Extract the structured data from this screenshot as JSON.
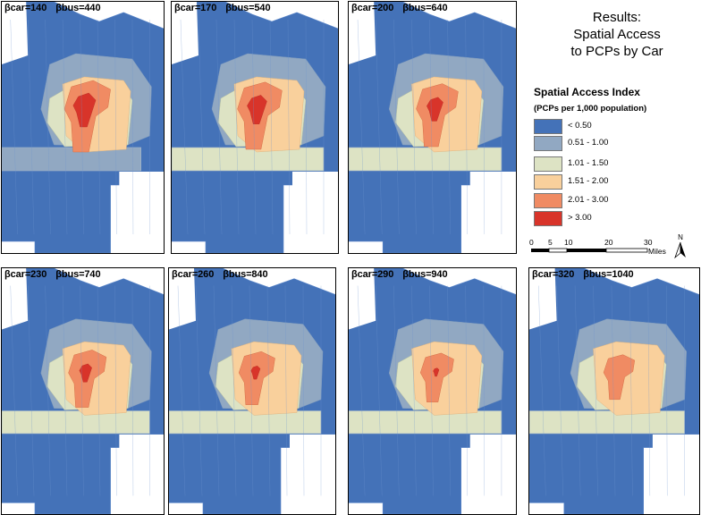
{
  "title": {
    "line1": "Results:",
    "line2": "Spatial Access",
    "line3": "to PCPs by Car"
  },
  "legend": {
    "title": "Spatial Access Index",
    "subtitle": "(PCPs per 1,000 population)",
    "classes": [
      {
        "label": "< 0.50",
        "color": "#4472b8"
      },
      {
        "label": "0.51 - 1.00",
        "color": "#91a8c2"
      },
      {
        "label": "1.01 - 1.50",
        "color": "#dde3c4"
      },
      {
        "label": "1.51 - 2.00",
        "color": "#f9d09c"
      },
      {
        "label": "2.01 - 3.00",
        "color": "#f08b63"
      },
      {
        "label": "> 3.00",
        "color": "#d8342a"
      }
    ]
  },
  "scalebar": {
    "ticks": [
      "0",
      "5",
      "10",
      "20",
      "30"
    ],
    "unit": "Miles"
  },
  "north_arrow": {
    "label": "N",
    "icon": "north-arrow-icon"
  },
  "panels": [
    {
      "label_car": "βcar=140",
      "label_bus": "βbus=440",
      "level": 0
    },
    {
      "label_car": "βcar=170",
      "label_bus": "βbus=540",
      "level": 1
    },
    {
      "label_car": "βcar=200",
      "label_bus": "βbus=640",
      "level": 2
    },
    {
      "label_car": "βcar=230",
      "label_bus": "βbus=740",
      "level": 3
    },
    {
      "label_car": "βcar=260",
      "label_bus": "βbus=840",
      "level": 4
    },
    {
      "label_car": "βcar=290",
      "label_bus": "βbus=940",
      "level": 5
    },
    {
      "label_car": "βcar=320",
      "label_bus": "βbus=1040",
      "level": 6
    }
  ]
}
